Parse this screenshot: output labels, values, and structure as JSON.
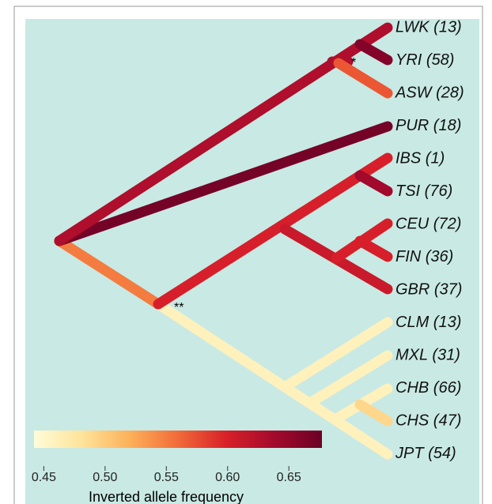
{
  "leaves": [
    "LWK (13)",
    "YRI (58)",
    "ASW (28)",
    "PUR (18)",
    "IBS (1)",
    "TSI (76)",
    "CEU (72)",
    "FIN (36)",
    "GBR (37)",
    "CLM (13)",
    "MXL (31)",
    "CHB (66)",
    "CHS (47)",
    "JPT (54)"
  ],
  "branch_values": [
    0.46,
    0.46,
    0.46,
    0.46,
    0.49,
    0.55,
    0.6,
    0.64,
    0.61,
    0.6,
    0.6,
    0.67,
    0.63,
    0.63,
    0.57,
    0.66
  ],
  "annotations": [
    "*",
    "**"
  ],
  "colorbar": {
    "label": "Inverted allele frequency",
    "lim": [
      0.442,
      0.677
    ],
    "ticks": [
      0.45,
      {
        "value": 0.5,
        "label": "0.50"
      },
      0.55,
      {
        "value": 0.6,
        "label": "0.60"
      },
      0.65
    ],
    "colormap": [
      "#fffcd8",
      "#fee39a",
      "#fdb05a",
      "#f26b38",
      "#d8202a",
      "#a50a2c",
      "#6b0026"
    ]
  }
}
